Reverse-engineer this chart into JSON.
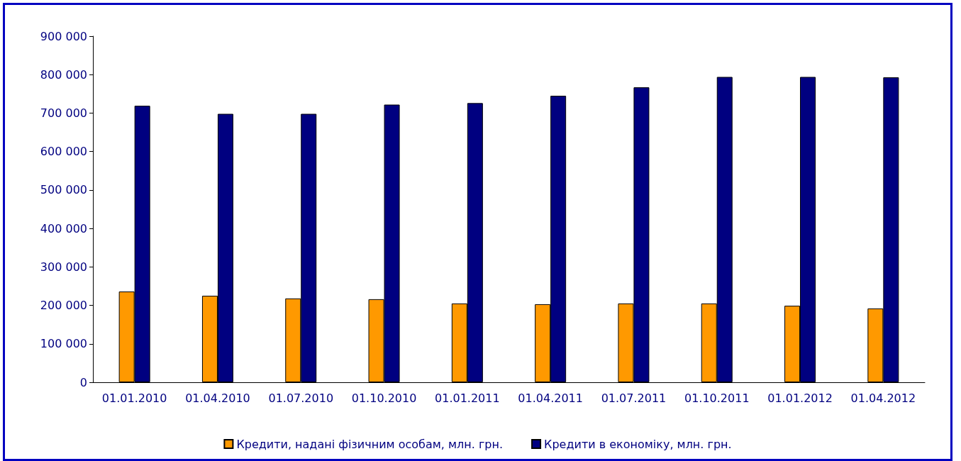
{
  "chart_data": {
    "type": "bar",
    "categories": [
      "01.01.2010",
      "01.04.2010",
      "01.07.2010",
      "01.10.2010",
      "01.01.2011",
      "01.04.2011",
      "01.07.2011",
      "01.10.2011",
      "01.01.2012",
      "01.04.2012"
    ],
    "series": [
      {
        "name": "Кредити, надані фізичним особам, млн. грн.",
        "color": "#ff9900",
        "values": [
          236000,
          225000,
          218000,
          216000,
          205000,
          203000,
          205000,
          205000,
          199000,
          192000
        ]
      },
      {
        "name": "Кредити в економіку, млн. грн.",
        "color": "#000080",
        "values": [
          719000,
          698000,
          698000,
          722000,
          726000,
          745000,
          767000,
          794000,
          794000,
          793000
        ]
      }
    ],
    "ylim": [
      0,
      900000
    ],
    "yticks": [
      {
        "value": 0,
        "label": "0"
      },
      {
        "value": 100000,
        "label": "100 000"
      },
      {
        "value": 200000,
        "label": "200 000"
      },
      {
        "value": 300000,
        "label": "300 000"
      },
      {
        "value": 400000,
        "label": "400 000"
      },
      {
        "value": 500000,
        "label": "500 000"
      },
      {
        "value": 600000,
        "label": "600 000"
      },
      {
        "value": 700000,
        "label": "700 000"
      },
      {
        "value": 800000,
        "label": "800 000"
      },
      {
        "value": 900000,
        "label": "900 000"
      }
    ],
    "grid": false,
    "legend": "bottom"
  }
}
